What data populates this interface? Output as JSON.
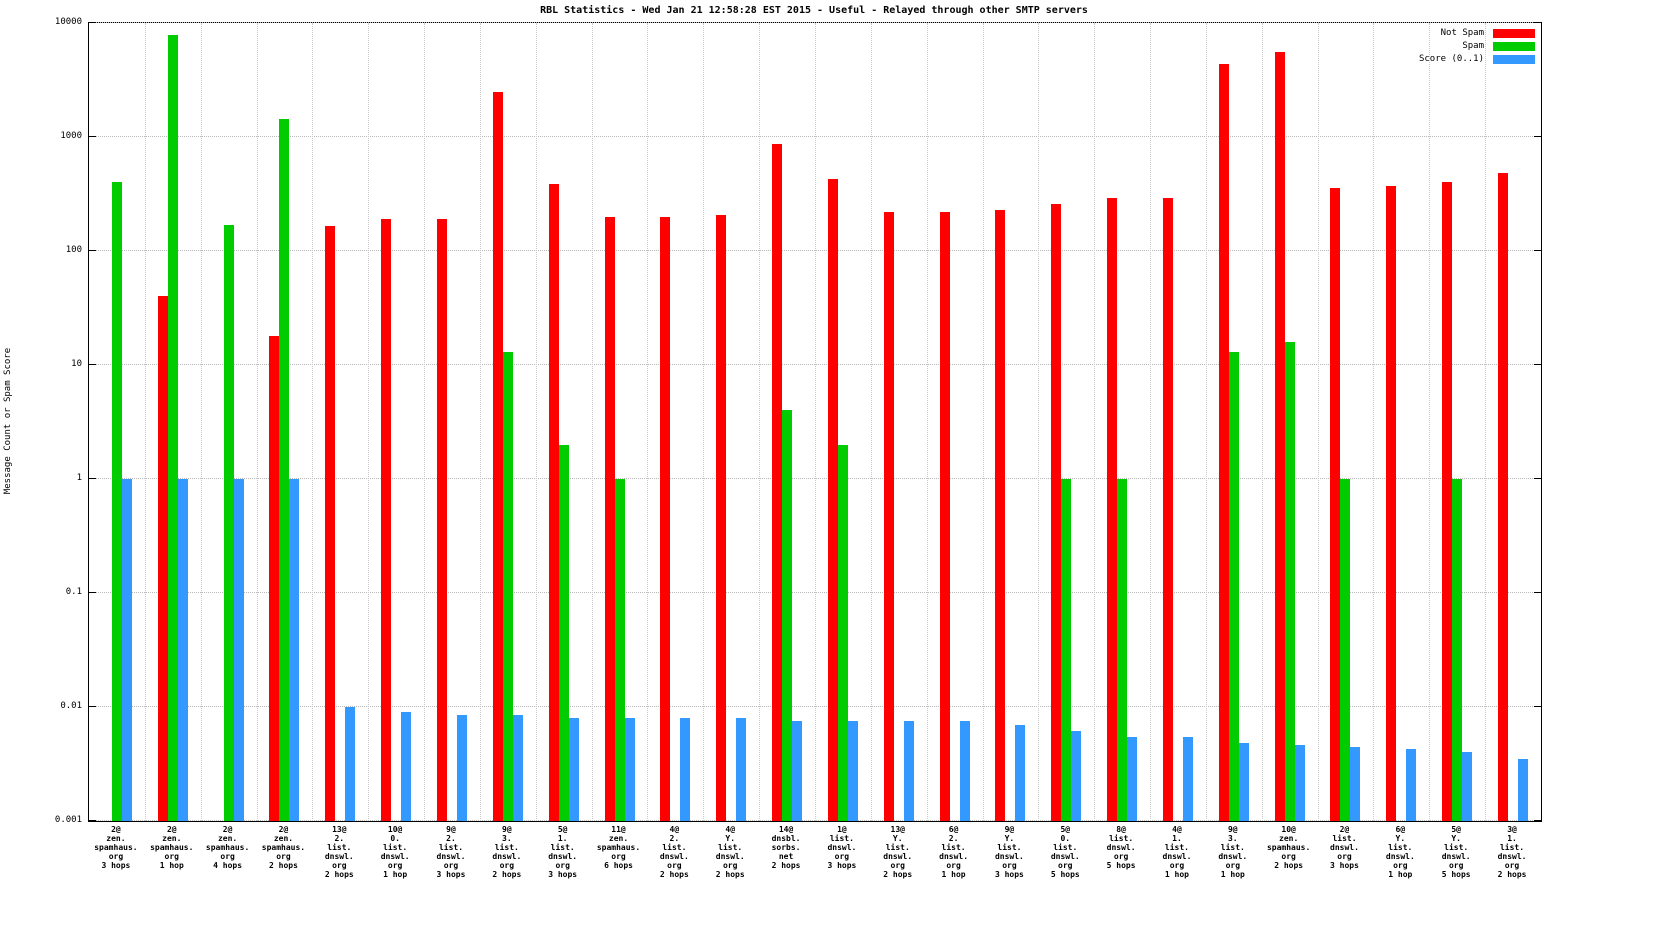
{
  "title": "RBL Statistics - Wed Jan 21 12:58:28 EST 2015 - Useful - Relayed through other SMTP servers",
  "ylabel": "Message Count or Spam Score",
  "chart_data": {
    "type": "bar",
    "y_scale": "log",
    "ylim": [
      0.001,
      10000
    ],
    "yticks": [
      10000,
      1000,
      100,
      10,
      1,
      0.1,
      0.01,
      0.001
    ],
    "grid": true,
    "legend_position": "top-right",
    "categories": [
      [
        "2@",
        "zen.",
        "spamhaus.",
        "org",
        "3 hops"
      ],
      [
        "2@",
        "zen.",
        "spamhaus.",
        "org",
        "1 hop"
      ],
      [
        "2@",
        "zen.",
        "spamhaus.",
        "org",
        "4 hops"
      ],
      [
        "2@",
        "zen.",
        "spamhaus.",
        "org",
        "2 hops"
      ],
      [
        "13@",
        "2.",
        "list.",
        "dnswl.",
        "org",
        "2 hops"
      ],
      [
        "10@",
        "0.",
        "list.",
        "dnswl.",
        "org",
        "1 hop"
      ],
      [
        "9@",
        "2.",
        "list.",
        "dnswl.",
        "org",
        "3 hops"
      ],
      [
        "9@",
        "3.",
        "list.",
        "dnswl.",
        "org",
        "2 hops"
      ],
      [
        "5@",
        "1.",
        "list.",
        "dnswl.",
        "org",
        "3 hops"
      ],
      [
        "11@",
        "zen.",
        "spamhaus.",
        "org",
        "6 hops"
      ],
      [
        "4@",
        "2.",
        "list.",
        "dnswl.",
        "org",
        "2 hops"
      ],
      [
        "4@",
        "Y.",
        "list.",
        "dnswl.",
        "org",
        "2 hops"
      ],
      [
        "14@",
        "dnsbl.",
        "sorbs.",
        "net",
        "2 hops"
      ],
      [
        "1@",
        "list.",
        "dnswl.",
        "org",
        "3 hops"
      ],
      [
        "13@",
        "Y.",
        "list.",
        "dnswl.",
        "org",
        "2 hops"
      ],
      [
        "6@",
        "2.",
        "list.",
        "dnswl.",
        "org",
        "1 hop"
      ],
      [
        "9@",
        "Y.",
        "list.",
        "dnswl.",
        "org",
        "3 hops"
      ],
      [
        "5@",
        "0.",
        "list.",
        "dnswl.",
        "org",
        "5 hops"
      ],
      [
        "8@",
        "list.",
        "dnswl.",
        "org",
        "5 hops"
      ],
      [
        "4@",
        "1.",
        "list.",
        "dnswl.",
        "org",
        "1 hop"
      ],
      [
        "9@",
        "3.",
        "list.",
        "dnswl.",
        "org",
        "1 hop"
      ],
      [
        "10@",
        "zen.",
        "spamhaus.",
        "org",
        "2 hops"
      ],
      [
        "2@",
        "list.",
        "dnswl.",
        "org",
        "3 hops"
      ],
      [
        "6@",
        "Y.",
        "list.",
        "dnswl.",
        "org",
        "1 hop"
      ],
      [
        "5@",
        "Y.",
        "list.",
        "dnswl.",
        "org",
        "5 hops"
      ],
      [
        "3@",
        "1.",
        "list.",
        "dnswl.",
        "org",
        "2 hops"
      ]
    ],
    "series": [
      {
        "name": "Not Spam",
        "color": "#ff0000",
        "values": [
          null,
          40,
          null,
          18,
          165,
          190,
          190,
          2500,
          390,
          200,
          200,
          205,
          870,
          430,
          220,
          220,
          230,
          260,
          290,
          290,
          4400,
          5600,
          360,
          370,
          400,
          480
        ]
      },
      {
        "name": "Spam",
        "color": "#00cc00",
        "values": [
          400,
          7800,
          170,
          1450,
          null,
          null,
          null,
          13,
          2,
          1,
          null,
          null,
          4,
          2,
          null,
          null,
          null,
          1,
          1,
          null,
          13,
          16,
          1,
          null,
          1,
          null
        ]
      },
      {
        "name": "Score (0..1)",
        "color": "#3399ff",
        "values": [
          1,
          1,
          1,
          1,
          0.01,
          0.009,
          0.0085,
          0.0085,
          0.008,
          0.008,
          0.008,
          0.008,
          0.0075,
          0.0075,
          0.0075,
          0.0075,
          0.007,
          0.0062,
          0.0055,
          0.0055,
          0.0048,
          0.0046,
          0.0045,
          0.0043,
          0.004,
          0.0035
        ]
      }
    ]
  }
}
